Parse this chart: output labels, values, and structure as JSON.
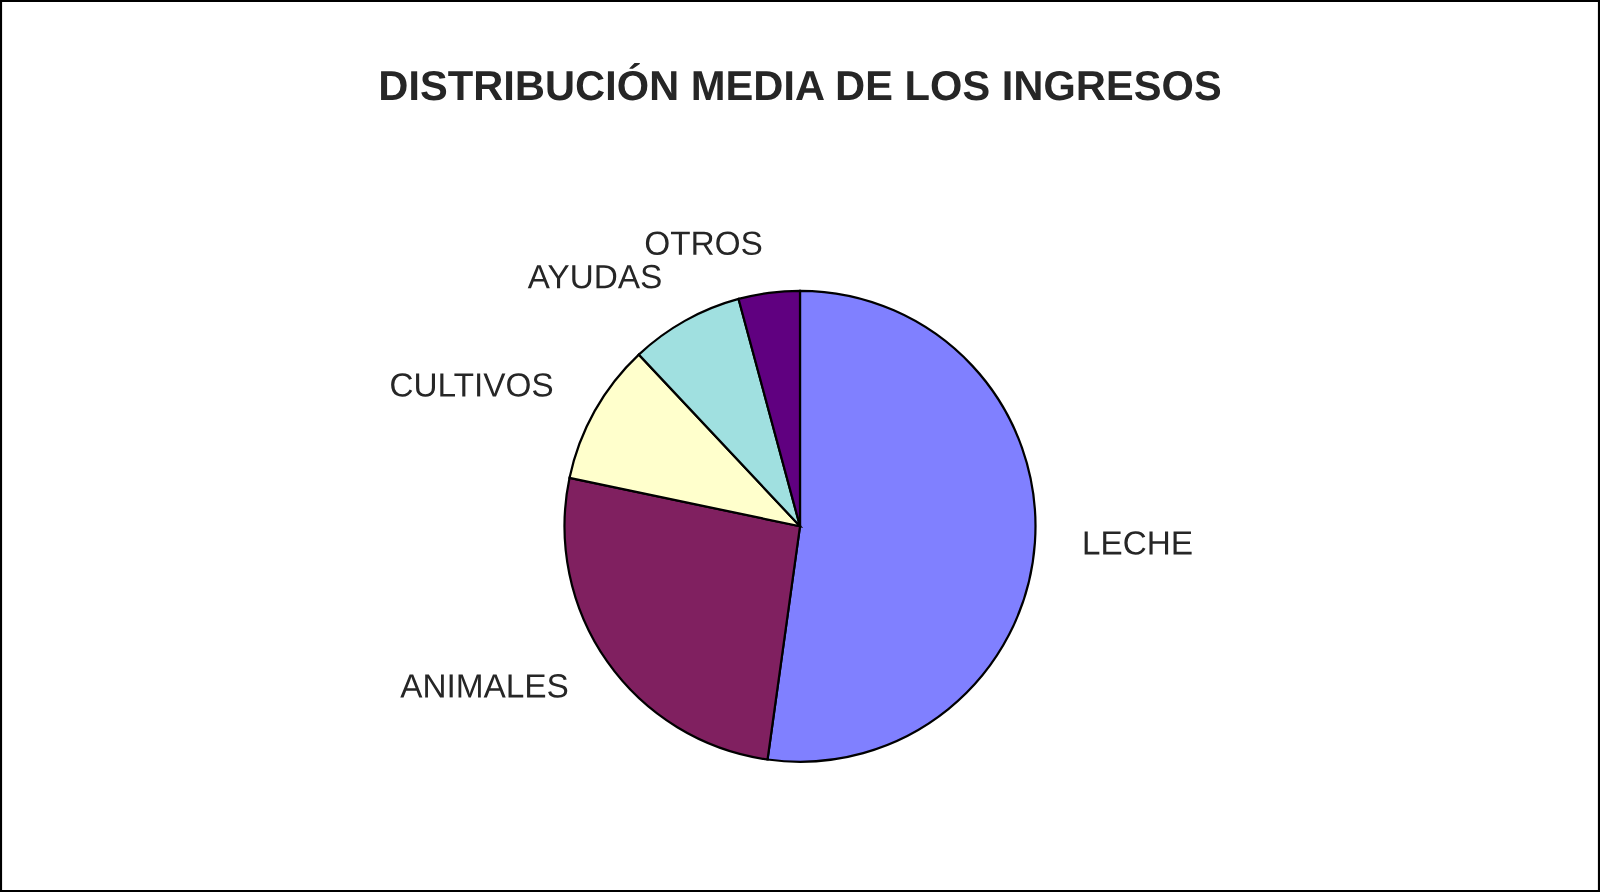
{
  "chart_data": {
    "type": "pie",
    "title": "DISTRIBUCIÓN MEDIA DE LOS INGRESOS",
    "categories": [
      "LECHE",
      "ANIMALES",
      "CULTIVOS",
      "AYUDAS",
      "OTROS"
    ],
    "values": [
      52.2,
      26.1,
      9.7,
      7.8,
      4.2
    ],
    "colors": [
      "#8080ff",
      "#802060",
      "#ffffcc",
      "#a0e0e0",
      "#600080"
    ],
    "legend": false
  }
}
